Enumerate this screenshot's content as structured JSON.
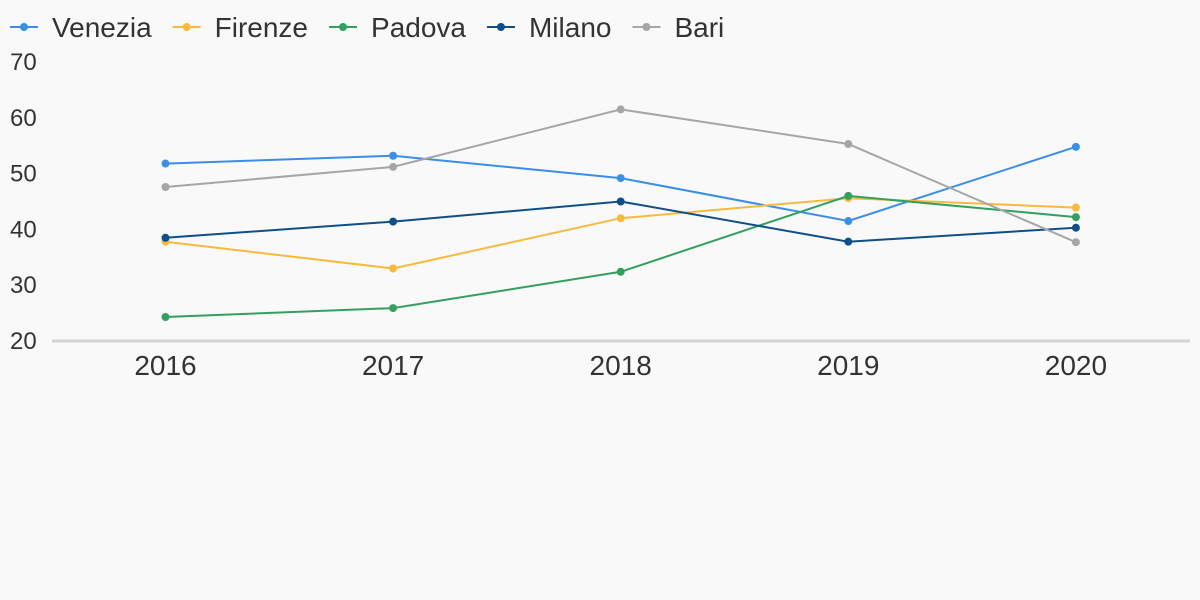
{
  "chart_data": {
    "type": "line",
    "title": "",
    "xlabel": "",
    "ylabel": "",
    "x": [
      "2016",
      "2017",
      "2018",
      "2019",
      "2020"
    ],
    "ylim": [
      20,
      70
    ],
    "y_ticks": [
      "20",
      "30",
      "40",
      "50",
      "60",
      "70"
    ],
    "grid": false,
    "legend_position": "top-left",
    "series": [
      {
        "name": "Venezia",
        "color": "#3a8ee6",
        "values": [
          51.8,
          53.2,
          49.2,
          41.5,
          54.8
        ]
      },
      {
        "name": "Firenze",
        "color": "#f7b93e",
        "values": [
          37.8,
          33.0,
          42.0,
          45.6,
          43.9
        ]
      },
      {
        "name": "Padova",
        "color": "#34a05f",
        "values": [
          24.3,
          25.9,
          32.4,
          46.0,
          42.2
        ]
      },
      {
        "name": "Milano",
        "color": "#0d4f86",
        "values": [
          38.5,
          41.4,
          45.0,
          37.8,
          40.3
        ]
      },
      {
        "name": "Bari",
        "color": "#a6a6a6",
        "values": [
          47.6,
          51.2,
          61.5,
          55.3,
          37.7
        ]
      }
    ]
  }
}
